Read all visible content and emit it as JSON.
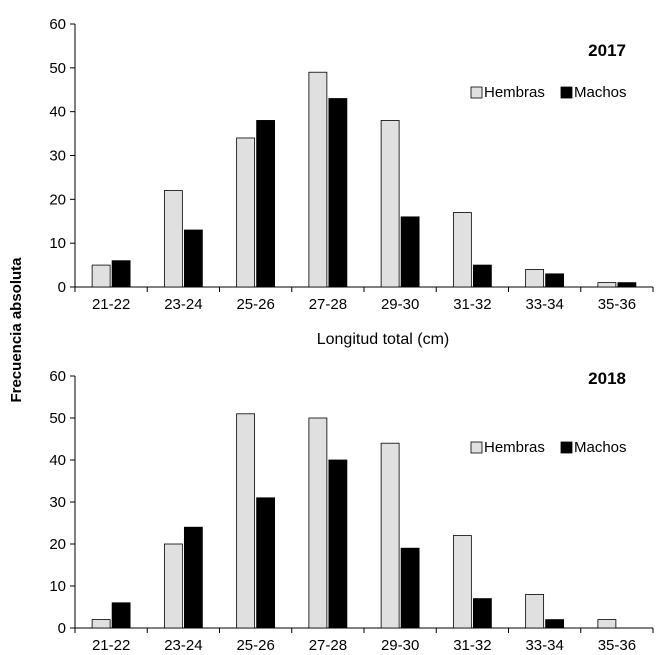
{
  "shared": {
    "ylabel": "Frecuencia absoluta"
  },
  "chart_data": [
    {
      "type": "bar",
      "title": "2017",
      "xlabel": "Longitud total (cm)",
      "ylabel": "Frecuencia absoluta",
      "ylim": [
        0,
        60
      ],
      "yticks": [
        0,
        10,
        20,
        30,
        40,
        50,
        60
      ],
      "grid": false,
      "legend_position": "top-right",
      "categories": [
        "21-22",
        "23-24",
        "25-26",
        "27-28",
        "29-30",
        "31-32",
        "33-34",
        "35-36"
      ],
      "series": [
        {
          "name": "Hembras",
          "color": "#e0e0e0",
          "values": [
            5,
            22,
            34,
            49,
            38,
            17,
            4,
            1
          ]
        },
        {
          "name": "Machos",
          "color": "#000000",
          "values": [
            6,
            13,
            38,
            43,
            16,
            5,
            3,
            1
          ]
        }
      ]
    },
    {
      "type": "bar",
      "title": "2018",
      "xlabel": "",
      "ylabel": "Frecuencia absoluta",
      "ylim": [
        0,
        60
      ],
      "yticks": [
        0,
        10,
        20,
        30,
        40,
        50,
        60
      ],
      "grid": false,
      "legend_position": "top-right",
      "categories": [
        "21-22",
        "23-24",
        "25-26",
        "27-28",
        "29-30",
        "31-32",
        "33-34",
        "35-36"
      ],
      "series": [
        {
          "name": "Hembras",
          "color": "#e0e0e0",
          "values": [
            2,
            20,
            51,
            50,
            44,
            22,
            8,
            2
          ]
        },
        {
          "name": "Machos",
          "color": "#000000",
          "values": [
            6,
            24,
            31,
            40,
            19,
            7,
            2,
            0
          ]
        }
      ]
    }
  ]
}
